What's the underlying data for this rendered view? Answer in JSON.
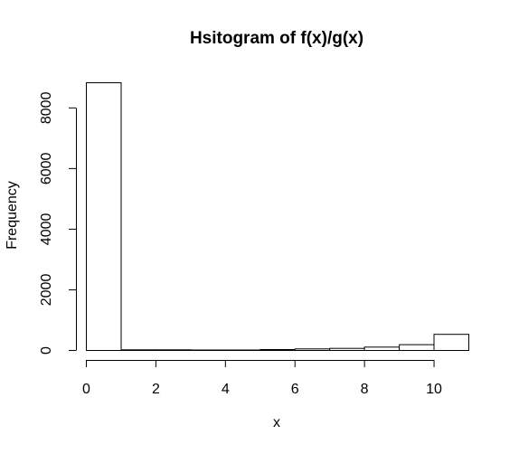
{
  "chart_data": {
    "type": "bar",
    "title": "Hsitogram of f(x)/g(x)",
    "xlabel": "x",
    "ylabel": "Frequency",
    "bins": [
      {
        "x0": 0,
        "x1": 1,
        "count": 8830
      },
      {
        "x0": 1,
        "x1": 2,
        "count": 20
      },
      {
        "x0": 2,
        "x1": 3,
        "count": 20
      },
      {
        "x0": 3,
        "x1": 4,
        "count": 15
      },
      {
        "x0": 4,
        "x1": 5,
        "count": 15
      },
      {
        "x0": 5,
        "x1": 6,
        "count": 30
      },
      {
        "x0": 6,
        "x1": 7,
        "count": 50
      },
      {
        "x0": 7,
        "x1": 8,
        "count": 70
      },
      {
        "x0": 8,
        "x1": 9,
        "count": 110
      },
      {
        "x0": 9,
        "x1": 10,
        "count": 190
      },
      {
        "x0": 10,
        "x1": 11,
        "count": 530
      }
    ],
    "xlim": [
      0,
      11
    ],
    "ylim": [
      0,
      8830
    ],
    "xticks": [
      0,
      2,
      4,
      6,
      8,
      10
    ],
    "yticks": [
      0,
      2000,
      4000,
      6000,
      8000
    ],
    "grid": false,
    "legend": "none"
  }
}
